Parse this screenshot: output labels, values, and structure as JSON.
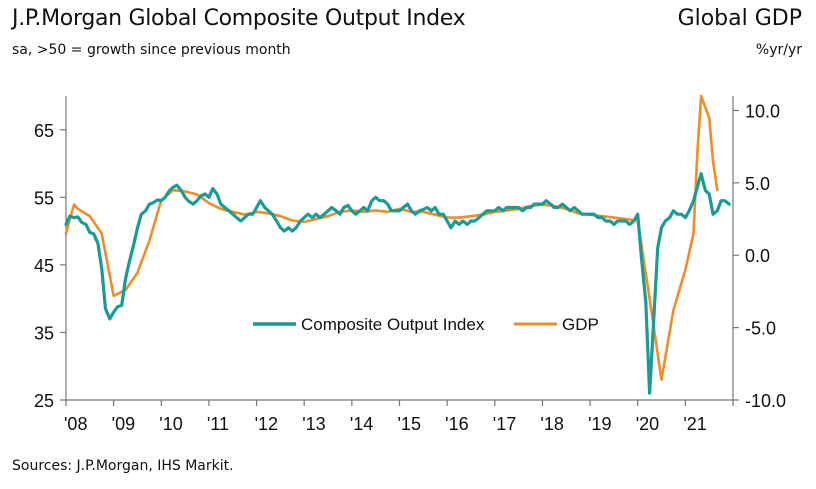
{
  "header": {
    "title": "J.P.Morgan Global Composite Output Index",
    "subtitle": "sa, >50 = growth since previous month",
    "right_title": "Global GDP",
    "right_unit": "%yr/yr"
  },
  "footer": {
    "source": "Sources: J.P.Morgan, IHS Markit."
  },
  "chart_data": {
    "type": "line",
    "title": "J.P.Morgan Global Composite Output Index",
    "x_ticks": [
      "'08",
      "'09",
      "'10",
      "'11",
      "'12",
      "'13",
      "'14",
      "'15",
      "'16",
      "'17",
      "'18",
      "'19",
      "'20",
      "'21"
    ],
    "xlim": [
      2008.0,
      2022.0
    ],
    "y_left": {
      "ticks": [
        "25",
        "35",
        "45",
        "55",
        "65"
      ],
      "ylim": [
        25,
        70
      ]
    },
    "y_right": {
      "ticks": [
        "-10.0",
        "-5.0",
        "0.0",
        "5.0",
        "10.0"
      ],
      "ylim": [
        -10,
        11
      ]
    },
    "colors": {
      "composite": "#1a9c94",
      "gdp": "#f28c28"
    },
    "legend_position": "bottom-center",
    "series": [
      {
        "name": "Composite Output Index",
        "axis": "left",
        "points": [
          [
            2008.0,
            51.0
          ],
          [
            2008.08,
            52.2
          ],
          [
            2008.17,
            52.0
          ],
          [
            2008.25,
            52.1
          ],
          [
            2008.33,
            51.3
          ],
          [
            2008.42,
            51.0
          ],
          [
            2008.5,
            49.8
          ],
          [
            2008.58,
            49.6
          ],
          [
            2008.67,
            48.2
          ],
          [
            2008.75,
            44.5
          ],
          [
            2008.83,
            38.5
          ],
          [
            2008.92,
            37.0
          ],
          [
            2009.0,
            38.0
          ],
          [
            2009.08,
            38.8
          ],
          [
            2009.17,
            39.0
          ],
          [
            2009.25,
            43.0
          ],
          [
            2009.33,
            45.5
          ],
          [
            2009.42,
            48.0
          ],
          [
            2009.5,
            50.5
          ],
          [
            2009.58,
            52.5
          ],
          [
            2009.67,
            53.0
          ],
          [
            2009.75,
            54.0
          ],
          [
            2009.83,
            54.2
          ],
          [
            2009.92,
            54.6
          ],
          [
            2010.0,
            54.5
          ],
          [
            2010.08,
            55.0
          ],
          [
            2010.17,
            56.0
          ],
          [
            2010.25,
            56.5
          ],
          [
            2010.33,
            56.8
          ],
          [
            2010.42,
            56.0
          ],
          [
            2010.5,
            55.0
          ],
          [
            2010.58,
            54.4
          ],
          [
            2010.67,
            54.0
          ],
          [
            2010.75,
            54.5
          ],
          [
            2010.83,
            55.2
          ],
          [
            2010.92,
            55.5
          ],
          [
            2011.0,
            55.0
          ],
          [
            2011.08,
            56.3
          ],
          [
            2011.17,
            55.5
          ],
          [
            2011.25,
            54.0
          ],
          [
            2011.33,
            53.5
          ],
          [
            2011.42,
            53.0
          ],
          [
            2011.5,
            52.5
          ],
          [
            2011.58,
            52.0
          ],
          [
            2011.67,
            51.5
          ],
          [
            2011.75,
            52.0
          ],
          [
            2011.83,
            52.5
          ],
          [
            2011.92,
            52.5
          ],
          [
            2012.0,
            53.5
          ],
          [
            2012.08,
            54.5
          ],
          [
            2012.17,
            53.5
          ],
          [
            2012.25,
            53.0
          ],
          [
            2012.33,
            52.5
          ],
          [
            2012.42,
            51.5
          ],
          [
            2012.5,
            50.5
          ],
          [
            2012.58,
            50.0
          ],
          [
            2012.67,
            50.5
          ],
          [
            2012.75,
            50.0
          ],
          [
            2012.83,
            50.5
          ],
          [
            2012.92,
            51.5
          ],
          [
            2013.0,
            52.0
          ],
          [
            2013.08,
            52.5
          ],
          [
            2013.17,
            52.0
          ],
          [
            2013.25,
            52.5
          ],
          [
            2013.33,
            52.0
          ],
          [
            2013.42,
            52.5
          ],
          [
            2013.5,
            53.0
          ],
          [
            2013.58,
            53.5
          ],
          [
            2013.67,
            53.0
          ],
          [
            2013.75,
            52.5
          ],
          [
            2013.83,
            53.5
          ],
          [
            2013.92,
            53.8
          ],
          [
            2014.0,
            53.0
          ],
          [
            2014.08,
            52.5
          ],
          [
            2014.17,
            53.0
          ],
          [
            2014.25,
            53.5
          ],
          [
            2014.33,
            53.0
          ],
          [
            2014.42,
            54.5
          ],
          [
            2014.5,
            55.0
          ],
          [
            2014.58,
            54.5
          ],
          [
            2014.67,
            54.5
          ],
          [
            2014.75,
            54.0
          ],
          [
            2014.83,
            53.0
          ],
          [
            2014.92,
            53.0
          ],
          [
            2015.0,
            53.0
          ],
          [
            2015.08,
            53.5
          ],
          [
            2015.17,
            54.0
          ],
          [
            2015.25,
            53.0
          ],
          [
            2015.33,
            52.5
          ],
          [
            2015.42,
            53.0
          ],
          [
            2015.5,
            53.2
          ],
          [
            2015.58,
            53.5
          ],
          [
            2015.67,
            53.0
          ],
          [
            2015.75,
            53.5
          ],
          [
            2015.83,
            52.5
          ],
          [
            2015.92,
            52.5
          ],
          [
            2016.0,
            51.5
          ],
          [
            2016.08,
            50.5
          ],
          [
            2016.17,
            51.5
          ],
          [
            2016.25,
            51.0
          ],
          [
            2016.33,
            51.5
          ],
          [
            2016.42,
            51.0
          ],
          [
            2016.5,
            51.5
          ],
          [
            2016.58,
            51.5
          ],
          [
            2016.67,
            52.0
          ],
          [
            2016.75,
            52.5
          ],
          [
            2016.83,
            53.0
          ],
          [
            2016.92,
            53.0
          ],
          [
            2017.0,
            53.0
          ],
          [
            2017.08,
            53.5
          ],
          [
            2017.17,
            53.0
          ],
          [
            2017.25,
            53.5
          ],
          [
            2017.33,
            53.5
          ],
          [
            2017.42,
            53.5
          ],
          [
            2017.5,
            53.5
          ],
          [
            2017.58,
            53.0
          ],
          [
            2017.67,
            53.5
          ],
          [
            2017.75,
            53.5
          ],
          [
            2017.83,
            54.0
          ],
          [
            2017.92,
            54.0
          ],
          [
            2018.0,
            54.0
          ],
          [
            2018.08,
            54.5
          ],
          [
            2018.17,
            54.0
          ],
          [
            2018.25,
            53.5
          ],
          [
            2018.33,
            53.5
          ],
          [
            2018.42,
            54.0
          ],
          [
            2018.5,
            53.5
          ],
          [
            2018.58,
            53.0
          ],
          [
            2018.67,
            53.5
          ],
          [
            2018.75,
            53.0
          ],
          [
            2018.83,
            52.5
          ],
          [
            2018.92,
            52.5
          ],
          [
            2019.0,
            52.5
          ],
          [
            2019.08,
            52.5
          ],
          [
            2019.17,
            52.0
          ],
          [
            2019.25,
            52.0
          ],
          [
            2019.33,
            51.5
          ],
          [
            2019.42,
            51.5
          ],
          [
            2019.5,
            51.0
          ],
          [
            2019.58,
            51.5
          ],
          [
            2019.67,
            51.5
          ],
          [
            2019.75,
            51.5
          ],
          [
            2019.83,
            51.0
          ],
          [
            2019.92,
            51.5
          ],
          [
            2020.0,
            52.5
          ],
          [
            2020.08,
            46.0
          ],
          [
            2020.17,
            39.5
          ],
          [
            2020.25,
            26.0
          ],
          [
            2020.33,
            36.0
          ],
          [
            2020.42,
            47.5
          ],
          [
            2020.5,
            50.5
          ],
          [
            2020.58,
            51.5
          ],
          [
            2020.67,
            52.0
          ],
          [
            2020.75,
            53.0
          ],
          [
            2020.83,
            52.5
          ],
          [
            2020.92,
            52.5
          ],
          [
            2021.0,
            52.0
          ],
          [
            2021.08,
            53.0
          ],
          [
            2021.17,
            54.5
          ],
          [
            2021.25,
            56.5
          ],
          [
            2021.33,
            58.5
          ],
          [
            2021.42,
            56.0
          ],
          [
            2021.5,
            55.5
          ],
          [
            2021.58,
            52.5
          ],
          [
            2021.67,
            53.0
          ],
          [
            2021.75,
            54.5
          ],
          [
            2021.83,
            54.5
          ],
          [
            2021.92,
            54.0
          ]
        ]
      },
      {
        "name": "GDP",
        "axis": "right",
        "points": [
          [
            2008.0,
            1.5
          ],
          [
            2008.08,
            2.5
          ],
          [
            2008.17,
            3.5
          ],
          [
            2008.25,
            3.2
          ],
          [
            2008.5,
            2.7
          ],
          [
            2008.75,
            1.5
          ],
          [
            2009.0,
            -2.8
          ],
          [
            2009.25,
            -2.4
          ],
          [
            2009.5,
            -1.2
          ],
          [
            2009.75,
            1.0
          ],
          [
            2010.0,
            3.8
          ],
          [
            2010.25,
            4.5
          ],
          [
            2010.5,
            4.4
          ],
          [
            2010.75,
            4.2
          ],
          [
            2011.0,
            3.6
          ],
          [
            2011.25,
            3.2
          ],
          [
            2011.5,
            3.0
          ],
          [
            2011.75,
            2.8
          ],
          [
            2012.0,
            3.0
          ],
          [
            2012.25,
            2.9
          ],
          [
            2012.5,
            2.7
          ],
          [
            2012.75,
            2.4
          ],
          [
            2013.0,
            2.3
          ],
          [
            2013.25,
            2.5
          ],
          [
            2013.5,
            2.7
          ],
          [
            2013.75,
            3.0
          ],
          [
            2014.0,
            3.1
          ],
          [
            2014.25,
            3.0
          ],
          [
            2014.5,
            3.1
          ],
          [
            2014.75,
            3.0
          ],
          [
            2015.0,
            3.2
          ],
          [
            2015.25,
            3.0
          ],
          [
            2015.5,
            3.0
          ],
          [
            2015.75,
            2.8
          ],
          [
            2016.0,
            2.6
          ],
          [
            2016.25,
            2.6
          ],
          [
            2016.5,
            2.7
          ],
          [
            2016.75,
            2.8
          ],
          [
            2017.0,
            3.0
          ],
          [
            2017.25,
            3.1
          ],
          [
            2017.5,
            3.2
          ],
          [
            2017.75,
            3.4
          ],
          [
            2018.0,
            3.5
          ],
          [
            2018.25,
            3.4
          ],
          [
            2018.5,
            3.2
          ],
          [
            2018.75,
            2.9
          ],
          [
            2019.0,
            2.8
          ],
          [
            2019.25,
            2.7
          ],
          [
            2019.5,
            2.6
          ],
          [
            2019.75,
            2.5
          ],
          [
            2020.0,
            2.4
          ],
          [
            2020.25,
            -3.0
          ],
          [
            2020.5,
            -8.6
          ],
          [
            2020.75,
            -3.8
          ],
          [
            2021.0,
            -1.0
          ],
          [
            2021.17,
            1.5
          ],
          [
            2021.25,
            7.0
          ],
          [
            2021.33,
            11.0
          ],
          [
            2021.5,
            9.5
          ],
          [
            2021.58,
            6.5
          ],
          [
            2021.67,
            4.5
          ]
        ]
      }
    ]
  }
}
